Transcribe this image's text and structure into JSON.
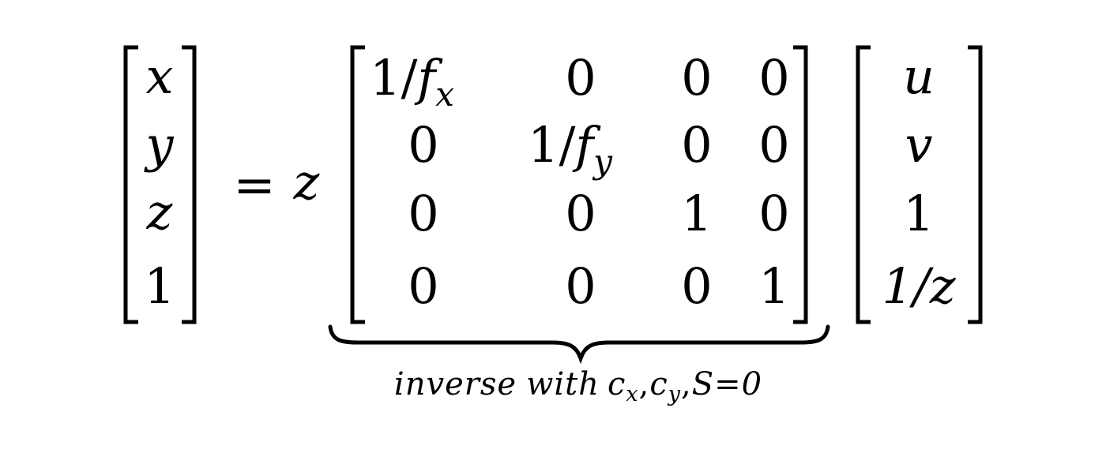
{
  "equation": {
    "lhs": [
      "x",
      "y",
      "z",
      "1"
    ],
    "equals": "=",
    "scalar": "z",
    "matrix": [
      [
        {
          "num": "1/",
          "var": "f",
          "sub": "x"
        },
        "0",
        "0",
        "0"
      ],
      [
        "0",
        {
          "num": "1/",
          "var": "f",
          "sub": "y"
        },
        "0",
        "0"
      ],
      [
        "0",
        "0",
        "1",
        "0"
      ],
      [
        "0",
        "0",
        "0",
        "1"
      ]
    ],
    "rhs": [
      "u",
      "v",
      "1",
      "1/z"
    ],
    "underbrace": {
      "word1": "inverse",
      "word2": "with",
      "c": "c",
      "sub_x": "x",
      "sub_y": "y",
      "comma": ",",
      "tail": "S=0"
    }
  }
}
